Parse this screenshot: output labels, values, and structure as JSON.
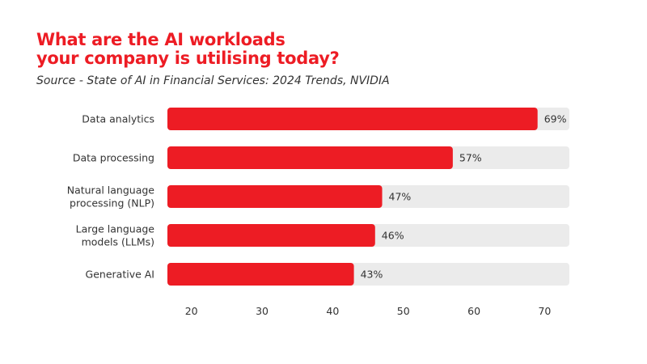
{
  "chart_data": {
    "type": "bar",
    "orientation": "horizontal",
    "title": "What are the AI workloads\nyour company is utilising today?",
    "title_lines": [
      "What are the AI workloads",
      "your company is utilising today?"
    ],
    "subtitle": "Source - State of AI in Financial Services: 2024 Trends, NVIDIA",
    "categories": [
      [
        "Data analytics"
      ],
      [
        "Data processing"
      ],
      [
        "Natural language",
        "processing (NLP)"
      ],
      [
        "Large language",
        "models (LLMs)"
      ],
      [
        "Generative AI"
      ]
    ],
    "values": [
      69,
      57,
      47,
      46,
      43
    ],
    "data_labels": [
      "69%",
      "57%",
      "47%",
      "46%",
      "43%"
    ],
    "xticks": [
      20,
      30,
      40,
      50,
      60,
      70
    ],
    "xlim": [
      16.6,
      73.5
    ],
    "grid": false,
    "colors": {
      "bar": "#ed1c24",
      "track": "#ebebeb",
      "title": "#ed1c24"
    }
  }
}
